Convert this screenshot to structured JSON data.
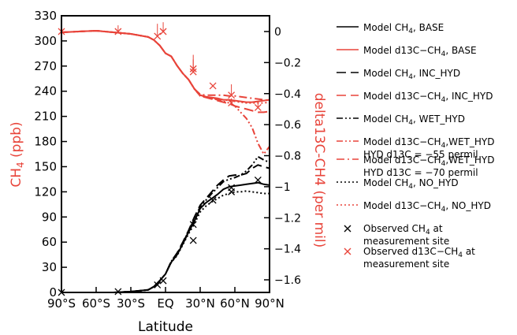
{
  "chart_data": {
    "type": "line",
    "xlabel": "Latitude",
    "ylabel_left": "CH4 (ppb)",
    "ylabel_right": "delta13C-CH4  (per mil)",
    "x_ticks": [
      {
        "value": -90,
        "label": "90°S"
      },
      {
        "value": -60,
        "label": "60°S"
      },
      {
        "value": -30,
        "label": "30°S"
      },
      {
        "value": 0,
        "label": "EQ"
      },
      {
        "value": 30,
        "label": "30°N"
      },
      {
        "value": 60,
        "label": "60°N"
      },
      {
        "value": 90,
        "label": "90°N"
      }
    ],
    "xlim": [
      -90,
      90
    ],
    "ylim_left": [
      0,
      330
    ],
    "ylim_right": [
      -1.65,
      0.05
    ],
    "yticks_left": [
      0,
      30,
      60,
      90,
      120,
      150,
      180,
      210,
      240,
      270,
      300,
      330
    ],
    "yticks_right": [
      0,
      -0.2,
      -0.4,
      -0.6,
      -0.8,
      -1,
      -1.2,
      -1.4,
      -1.6
    ],
    "colors": {
      "ch4": "#000000",
      "d13c": "#e8443a"
    },
    "series": [
      {
        "name": "Model CH4, BASE",
        "axis": "left",
        "color": "#000000",
        "dash": "solid",
        "x": [
          -90,
          -60,
          -45,
          -30,
          -15,
          -10,
          -5,
          0,
          5,
          10,
          15,
          20,
          25,
          30,
          35,
          40,
          45,
          50,
          55,
          60,
          65,
          70,
          75,
          80,
          85,
          90
        ],
        "y": [
          0,
          0,
          0,
          1,
          3,
          7,
          14,
          22,
          36,
          45,
          58,
          72,
          85,
          100,
          107,
          112,
          117,
          123,
          126,
          127,
          128,
          129,
          130,
          131,
          129,
          128
        ]
      },
      {
        "name": "Model d13C-CH4, BASE",
        "axis": "right",
        "color": "#e8443a",
        "dash": "solid",
        "x": [
          -90,
          -60,
          -45,
          -30,
          -15,
          -10,
          -5,
          0,
          5,
          10,
          15,
          20,
          25,
          30,
          35,
          40,
          45,
          50,
          55,
          60,
          65,
          70,
          75,
          80,
          85,
          90
        ],
        "y": [
          -0.005,
          0.005,
          -0.005,
          -0.015,
          -0.035,
          -0.055,
          -0.09,
          -0.14,
          -0.16,
          -0.22,
          -0.27,
          -0.31,
          -0.37,
          -0.41,
          -0.42,
          -0.425,
          -0.43,
          -0.44,
          -0.44,
          -0.445,
          -0.45,
          -0.455,
          -0.455,
          -0.45,
          -0.445,
          -0.44
        ]
      },
      {
        "name": "Model CH4, INC_HYD",
        "axis": "left",
        "color": "#000000",
        "dash": "longdash",
        "x": [
          -90,
          -60,
          -45,
          -30,
          -15,
          -10,
          -5,
          0,
          5,
          10,
          15,
          20,
          25,
          30,
          35,
          40,
          45,
          50,
          55,
          60,
          65,
          70,
          75,
          80,
          85,
          90
        ],
        "y": [
          0,
          0,
          0,
          1,
          3,
          7,
          14,
          22,
          37,
          47,
          60,
          74,
          90,
          104,
          112,
          120,
          128,
          134,
          139,
          140,
          140,
          142,
          148,
          152,
          150,
          148
        ]
      },
      {
        "name": "Model d13C-CH4, INC_HYD",
        "axis": "right",
        "color": "#e8443a",
        "dash": "longdash",
        "x": [
          -90,
          -60,
          -45,
          -30,
          -15,
          -10,
          -5,
          0,
          5,
          10,
          15,
          20,
          25,
          30,
          35,
          40,
          45,
          50,
          55,
          60,
          65,
          70,
          75,
          80,
          85,
          90
        ],
        "y": [
          -0.005,
          0.005,
          -0.005,
          -0.015,
          -0.035,
          -0.055,
          -0.09,
          -0.14,
          -0.16,
          -0.22,
          -0.27,
          -0.31,
          -0.37,
          -0.415,
          -0.425,
          -0.435,
          -0.445,
          -0.455,
          -0.465,
          -0.48,
          -0.49,
          -0.5,
          -0.51,
          -0.52,
          -0.52,
          -0.515
        ]
      },
      {
        "name": "Model CH4, WET_HYD",
        "axis": "left",
        "color": "#000000",
        "dash": "dashdotdot",
        "x": [
          -90,
          -60,
          -45,
          -30,
          -15,
          -10,
          -5,
          0,
          5,
          10,
          15,
          20,
          25,
          30,
          35,
          40,
          45,
          50,
          55,
          60,
          65,
          70,
          75,
          80,
          85,
          90
        ],
        "y": [
          0,
          0,
          0,
          1,
          3,
          7,
          14,
          22,
          37,
          46,
          59,
          73,
          88,
          102,
          110,
          118,
          125,
          132,
          135,
          137,
          140,
          145,
          152,
          162,
          158,
          155
        ]
      },
      {
        "name": "Model d13C-CH4,WET_HYD HYD d13C = -55 permil",
        "axis": "right",
        "color": "#e8443a",
        "dash": "dashdotdot",
        "x": [
          -90,
          -60,
          -45,
          -30,
          -15,
          -10,
          -5,
          0,
          5,
          10,
          15,
          20,
          25,
          30,
          35,
          40,
          45,
          50,
          55,
          60,
          65,
          70,
          75,
          80,
          85,
          90
        ],
        "y": [
          -0.005,
          0.005,
          -0.005,
          -0.015,
          -0.035,
          -0.055,
          -0.09,
          -0.14,
          -0.16,
          -0.22,
          -0.27,
          -0.31,
          -0.37,
          -0.41,
          -0.42,
          -0.43,
          -0.44,
          -0.45,
          -0.46,
          -0.48,
          -0.52,
          -0.56,
          -0.62,
          -0.72,
          -0.79,
          -0.74
        ]
      },
      {
        "name": "Model d13C-CH4,WET_HYD HYD d13C = -70 permil",
        "axis": "right",
        "color": "#e8443a",
        "dash": "dashdot",
        "x": [
          -90,
          -60,
          -45,
          -30,
          -15,
          -10,
          -5,
          0,
          5,
          10,
          15,
          20,
          25,
          30,
          35,
          40,
          45,
          50,
          55,
          60,
          65,
          70,
          75,
          80,
          85,
          90
        ],
        "y": [
          -0.005,
          0.005,
          -0.005,
          -0.015,
          -0.035,
          -0.055,
          -0.09,
          -0.14,
          -0.16,
          -0.22,
          -0.27,
          -0.31,
          -0.37,
          -0.405,
          -0.41,
          -0.41,
          -0.41,
          -0.41,
          -0.415,
          -0.415,
          -0.42,
          -0.425,
          -0.43,
          -0.435,
          -0.44,
          -0.445
        ]
      },
      {
        "name": "Model CH4, NO_HYD",
        "axis": "left",
        "color": "#000000",
        "dash": "dotted",
        "x": [
          -90,
          -60,
          -45,
          -30,
          -15,
          -10,
          -5,
          0,
          5,
          10,
          15,
          20,
          25,
          30,
          35,
          40,
          45,
          50,
          55,
          60,
          65,
          70,
          75,
          80,
          85,
          90
        ],
        "y": [
          0,
          0,
          0,
          1,
          3,
          7,
          14,
          22,
          36,
          44,
          57,
          70,
          82,
          96,
          103,
          108,
          112,
          116,
          118,
          120,
          120,
          121,
          120,
          119,
          118,
          118
        ]
      },
      {
        "name": "Model d13C-CH4, NO_HYD",
        "axis": "right",
        "color": "#e8443a",
        "dash": "dotted",
        "x": [
          -90,
          -60,
          -45,
          -30,
          -15,
          -10,
          -5,
          0,
          5,
          10,
          15,
          20,
          25,
          30,
          35,
          40,
          45,
          50,
          55,
          60,
          65,
          70,
          75,
          80,
          85,
          90
        ],
        "y": [
          -0.005,
          0.005,
          -0.005,
          -0.015,
          -0.035,
          -0.055,
          -0.09,
          -0.14,
          -0.16,
          -0.22,
          -0.27,
          -0.31,
          -0.37,
          -0.415,
          -0.42,
          -0.43,
          -0.435,
          -0.44,
          -0.445,
          -0.45,
          -0.455,
          -0.46,
          -0.46,
          -0.46,
          -0.46,
          -0.455
        ]
      }
    ],
    "observations": [
      {
        "name": "Observed CH4 at measurement site",
        "axis": "left",
        "color": "#000000",
        "marker": "x",
        "x": [
          -90,
          -41,
          -7,
          -2,
          24,
          24,
          41,
          57,
          57,
          80
        ],
        "y": [
          0,
          1,
          9,
          14,
          62,
          81,
          110,
          120,
          125,
          134
        ]
      },
      {
        "name": "Observed d13C-CH4 at measurement site",
        "axis": "right",
        "color": "#e8443a",
        "marker": "x",
        "x": [
          -90,
          -41,
          -7,
          -2,
          24,
          24,
          41,
          57,
          57,
          80
        ],
        "y": [
          0,
          0,
          -0.03,
          0.0,
          -0.24,
          -0.26,
          -0.35,
          -0.41,
          -0.46,
          -0.49
        ],
        "err_up": [
          0,
          0.04,
          0.08,
          0.06,
          0.09,
          0.08,
          0,
          0.07,
          0.03,
          0.04
        ]
      }
    ],
    "legend": [
      {
        "text": "Model CH",
        "sub": "4",
        "tail": ", BASE",
        "color": "#000000",
        "dash": "solid",
        "marker": "line"
      },
      {
        "text": "Model d13C−CH",
        "sub": "4",
        "tail": ", BASE",
        "color": "#e8443a",
        "dash": "solid",
        "marker": "line"
      },
      {
        "text": "Model CH",
        "sub": "4",
        "tail": ", INC_HYD",
        "color": "#000000",
        "dash": "longdash",
        "marker": "line"
      },
      {
        "text": "Model d13C−CH",
        "sub": "4",
        "tail": ", INC_HYD",
        "color": "#e8443a",
        "dash": "longdash",
        "marker": "line"
      },
      {
        "text": "Model CH",
        "sub": "4",
        "tail": ", WET_HYD",
        "color": "#000000",
        "dash": "dashdotdot",
        "marker": "line"
      },
      {
        "text": "Model d13C−CH",
        "sub": "4",
        "tail": ",WET_HYD",
        "line2": "HYD d13C = −55 permil",
        "color": "#e8443a",
        "dash": "dashdotdot",
        "marker": "line"
      },
      {
        "text": "Model d13C−CH",
        "sub": "4",
        "tail": ",WET_HYD",
        "line2": "HYD d13C = −70 permil",
        "color": "#e8443a",
        "dash": "dashdot",
        "marker": "line"
      },
      {
        "text": "Model CH",
        "sub": "4",
        "tail": ", NO_HYD",
        "color": "#000000",
        "dash": "dotted",
        "marker": "line"
      },
      {
        "text": "Model d13C−CH",
        "sub": "4",
        "tail": ", NO_HYD",
        "color": "#e8443a",
        "dash": "dotted",
        "marker": "line"
      },
      {
        "text": "Observed CH",
        "sub": "4",
        "tail": " at",
        "line2": "measurement site",
        "color": "#000000",
        "marker": "x"
      },
      {
        "text": "Observed d13C−CH",
        "sub": "4",
        "tail": " at",
        "line2": "measurement site",
        "color": "#e8443a",
        "marker": "x"
      }
    ]
  }
}
